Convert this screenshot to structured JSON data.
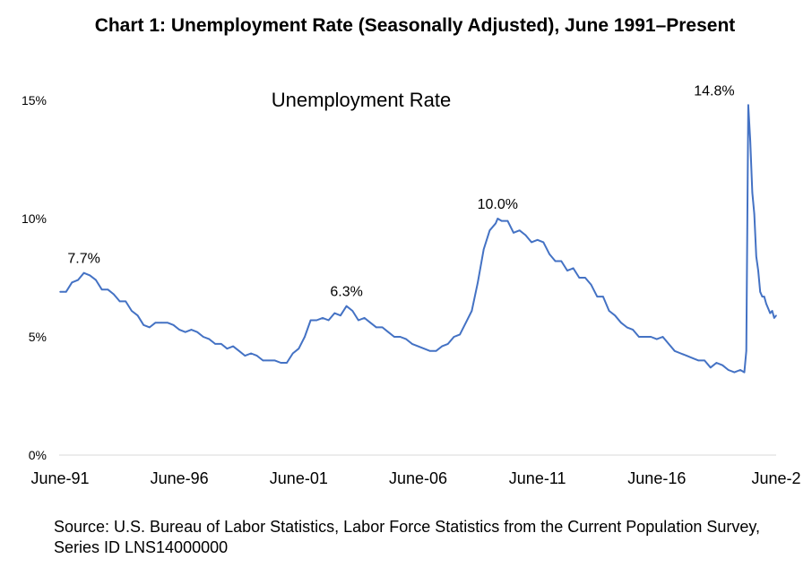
{
  "page": {
    "title": "Chart 1: Unemployment Rate (Seasonally Adjusted), June 1991–Present",
    "source": "Source: U.S. Bureau of Labor Statistics, Labor Force Statistics from the Current Population Survey, Series ID LNS14000000"
  },
  "chart_data": {
    "type": "line",
    "title": "Unemployment Rate",
    "xlabel": "",
    "ylabel": "",
    "x_tick_labels": [
      "June-91",
      "June-96",
      "June-01",
      "June-06",
      "June-11",
      "June-16",
      "June-2"
    ],
    "y_tick_labels": [
      "0%",
      "5%",
      "10%",
      "15%"
    ],
    "ylim": [
      0,
      15
    ],
    "grid": false,
    "legend": "none",
    "line_color": "#4472c4",
    "annotations": [
      {
        "text": "7.7%",
        "date": "1992-06",
        "value": 7.7
      },
      {
        "text": "6.3%",
        "date": "2003-06",
        "value": 6.3
      },
      {
        "text": "10.0%",
        "date": "2009-10",
        "value": 10.0
      },
      {
        "text": "14.8%",
        "date": "2020-04",
        "value": 14.8
      }
    ],
    "series": [
      {
        "points": [
          [
            "1991-06",
            6.9
          ],
          [
            "1991-09",
            6.9
          ],
          [
            "1991-12",
            7.3
          ],
          [
            "1992-03",
            7.4
          ],
          [
            "1992-06",
            7.7
          ],
          [
            "1992-09",
            7.6
          ],
          [
            "1992-12",
            7.4
          ],
          [
            "1993-03",
            7.0
          ],
          [
            "1993-06",
            7.0
          ],
          [
            "1993-09",
            6.8
          ],
          [
            "1993-12",
            6.5
          ],
          [
            "1994-03",
            6.5
          ],
          [
            "1994-06",
            6.1
          ],
          [
            "1994-09",
            5.9
          ],
          [
            "1994-12",
            5.5
          ],
          [
            "1995-03",
            5.4
          ],
          [
            "1995-06",
            5.6
          ],
          [
            "1995-09",
            5.6
          ],
          [
            "1995-12",
            5.6
          ],
          [
            "1996-03",
            5.5
          ],
          [
            "1996-06",
            5.3
          ],
          [
            "1996-09",
            5.2
          ],
          [
            "1996-12",
            5.3
          ],
          [
            "1997-03",
            5.2
          ],
          [
            "1997-06",
            5.0
          ],
          [
            "1997-09",
            4.9
          ],
          [
            "1997-12",
            4.7
          ],
          [
            "1998-03",
            4.7
          ],
          [
            "1998-06",
            4.5
          ],
          [
            "1998-09",
            4.6
          ],
          [
            "1998-12",
            4.4
          ],
          [
            "1999-03",
            4.2
          ],
          [
            "1999-06",
            4.3
          ],
          [
            "1999-09",
            4.2
          ],
          [
            "1999-12",
            4.0
          ],
          [
            "2000-03",
            4.0
          ],
          [
            "2000-06",
            4.0
          ],
          [
            "2000-09",
            3.9
          ],
          [
            "2000-12",
            3.9
          ],
          [
            "2001-03",
            4.3
          ],
          [
            "2001-06",
            4.5
          ],
          [
            "2001-09",
            5.0
          ],
          [
            "2001-12",
            5.7
          ],
          [
            "2002-03",
            5.7
          ],
          [
            "2002-06",
            5.8
          ],
          [
            "2002-09",
            5.7
          ],
          [
            "2002-12",
            6.0
          ],
          [
            "2003-03",
            5.9
          ],
          [
            "2003-06",
            6.3
          ],
          [
            "2003-09",
            6.1
          ],
          [
            "2003-12",
            5.7
          ],
          [
            "2004-03",
            5.8
          ],
          [
            "2004-06",
            5.6
          ],
          [
            "2004-09",
            5.4
          ],
          [
            "2004-12",
            5.4
          ],
          [
            "2005-03",
            5.2
          ],
          [
            "2005-06",
            5.0
          ],
          [
            "2005-09",
            5.0
          ],
          [
            "2005-12",
            4.9
          ],
          [
            "2006-03",
            4.7
          ],
          [
            "2006-06",
            4.6
          ],
          [
            "2006-09",
            4.5
          ],
          [
            "2006-12",
            4.4
          ],
          [
            "2007-03",
            4.4
          ],
          [
            "2007-06",
            4.6
          ],
          [
            "2007-09",
            4.7
          ],
          [
            "2007-12",
            5.0
          ],
          [
            "2008-03",
            5.1
          ],
          [
            "2008-06",
            5.6
          ],
          [
            "2008-09",
            6.1
          ],
          [
            "2008-12",
            7.3
          ],
          [
            "2009-03",
            8.7
          ],
          [
            "2009-06",
            9.5
          ],
          [
            "2009-09",
            9.8
          ],
          [
            "2009-10",
            10.0
          ],
          [
            "2009-12",
            9.9
          ],
          [
            "2010-03",
            9.9
          ],
          [
            "2010-06",
            9.4
          ],
          [
            "2010-09",
            9.5
          ],
          [
            "2010-12",
            9.3
          ],
          [
            "2011-03",
            9.0
          ],
          [
            "2011-06",
            9.1
          ],
          [
            "2011-09",
            9.0
          ],
          [
            "2011-12",
            8.5
          ],
          [
            "2012-03",
            8.2
          ],
          [
            "2012-06",
            8.2
          ],
          [
            "2012-09",
            7.8
          ],
          [
            "2012-12",
            7.9
          ],
          [
            "2013-03",
            7.5
          ],
          [
            "2013-06",
            7.5
          ],
          [
            "2013-09",
            7.2
          ],
          [
            "2013-12",
            6.7
          ],
          [
            "2014-03",
            6.7
          ],
          [
            "2014-06",
            6.1
          ],
          [
            "2014-09",
            5.9
          ],
          [
            "2014-12",
            5.6
          ],
          [
            "2015-03",
            5.4
          ],
          [
            "2015-06",
            5.3
          ],
          [
            "2015-09",
            5.0
          ],
          [
            "2015-12",
            5.0
          ],
          [
            "2016-03",
            5.0
          ],
          [
            "2016-06",
            4.9
          ],
          [
            "2016-09",
            5.0
          ],
          [
            "2016-12",
            4.7
          ],
          [
            "2017-03",
            4.4
          ],
          [
            "2017-06",
            4.3
          ],
          [
            "2017-09",
            4.2
          ],
          [
            "2017-12",
            4.1
          ],
          [
            "2018-03",
            4.0
          ],
          [
            "2018-06",
            4.0
          ],
          [
            "2018-09",
            3.7
          ],
          [
            "2018-12",
            3.9
          ],
          [
            "2019-03",
            3.8
          ],
          [
            "2019-06",
            3.6
          ],
          [
            "2019-09",
            3.5
          ],
          [
            "2019-12",
            3.6
          ],
          [
            "2020-02",
            3.5
          ],
          [
            "2020-03",
            4.4
          ],
          [
            "2020-04",
            14.8
          ],
          [
            "2020-05",
            13.3
          ],
          [
            "2020-06",
            11.1
          ],
          [
            "2020-07",
            10.2
          ],
          [
            "2020-08",
            8.4
          ],
          [
            "2020-09",
            7.8
          ],
          [
            "2020-10",
            6.9
          ],
          [
            "2020-11",
            6.7
          ],
          [
            "2020-12",
            6.7
          ],
          [
            "2021-01",
            6.4
          ],
          [
            "2021-02",
            6.2
          ],
          [
            "2021-03",
            6.0
          ],
          [
            "2021-04",
            6.1
          ],
          [
            "2021-05",
            5.8
          ],
          [
            "2021-06",
            5.9
          ]
        ]
      }
    ]
  }
}
